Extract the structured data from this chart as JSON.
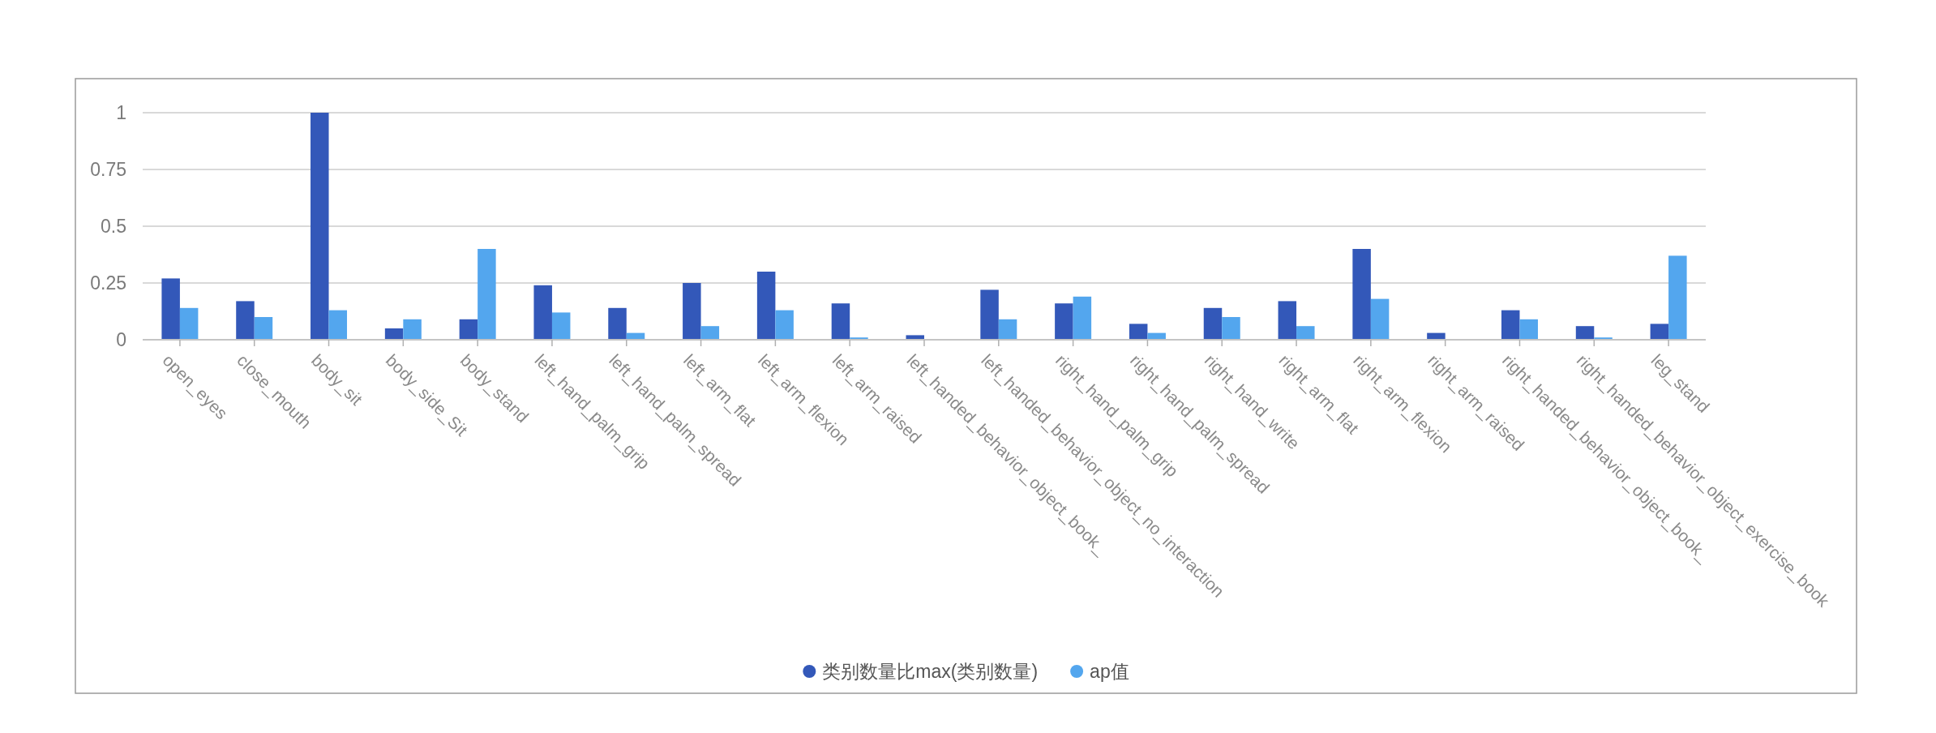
{
  "chart_data": {
    "type": "bar",
    "categories": [
      "open_eyes",
      "close_mouth",
      "body_sit",
      "body_side_Sit",
      "body_stand",
      "left_hand_palm_grip",
      "left_hand_palm_spread",
      "left_arm_flat",
      "left_arm_flexion",
      "left_arm_raised",
      "left_handed_behavior_object_book_",
      "left_handed_behavior_object_no_interaction",
      "right_hand_palm_grip",
      "right_hand_palm_spread",
      "right_hand_write",
      "right_arm_flat",
      "right_arm_flexion",
      "right_arm_raised",
      "right_handed_behavior_object_book_",
      "right_handed_behavior_object_exercise_book",
      "leg_stand"
    ],
    "series": [
      {
        "name": "类别数量比max(类别数量)",
        "color": "#3358b9",
        "values": [
          0.27,
          0.17,
          1.0,
          0.05,
          0.09,
          0.24,
          0.14,
          0.25,
          0.3,
          0.16,
          0.02,
          0.22,
          0.16,
          0.07,
          0.14,
          0.17,
          0.4,
          0.03,
          0.13,
          0.06,
          0.07
        ]
      },
      {
        "name": "ap值",
        "color": "#53a6ee",
        "values": [
          0.14,
          0.1,
          0.13,
          0.09,
          0.4,
          0.12,
          0.03,
          0.06,
          0.13,
          0.01,
          null,
          0.09,
          0.19,
          0.03,
          0.1,
          0.06,
          0.18,
          null,
          0.09,
          0.01,
          0.37
        ]
      }
    ],
    "ylim": [
      0,
      1
    ],
    "yticks": [
      0,
      0.25,
      0.5,
      0.75,
      1
    ],
    "grid": "y",
    "legend": "bottom"
  }
}
